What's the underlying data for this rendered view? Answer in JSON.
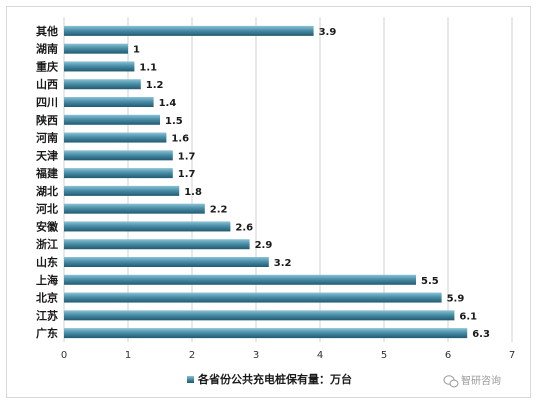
{
  "chart_data": {
    "type": "bar",
    "orientation": "horizontal",
    "categories": [
      "其他",
      "湖南",
      "重庆",
      "山西",
      "四川",
      "陕西",
      "河南",
      "天津",
      "福建",
      "湖北",
      "河北",
      "安徽",
      "浙江",
      "山东",
      "上海",
      "北京",
      "江苏",
      "广东"
    ],
    "values": [
      3.9,
      1,
      1.1,
      1.2,
      1.4,
      1.5,
      1.6,
      1.7,
      1.7,
      1.8,
      2.2,
      2.6,
      2.9,
      3.2,
      5.5,
      5.9,
      6.1,
      6.3
    ],
    "value_labels": [
      "3.9",
      "1",
      "1.1",
      "1.2",
      "1.4",
      "1.5",
      "1.6",
      "1.7",
      "1.7",
      "1.8",
      "2.2",
      "2.6",
      "2.9",
      "3.2",
      "5.5",
      "5.9",
      "6.1",
      "6.3"
    ],
    "xlim": [
      0,
      7
    ],
    "x_ticks": [
      "0",
      "1",
      "2",
      "3",
      "4",
      "5",
      "6",
      "7"
    ],
    "grid": true,
    "legend_position": "bottom",
    "series": [
      {
        "name": "各省份公共充电桩保有量：万台",
        "color": "#3e7d95"
      }
    ],
    "colors": {
      "bar_light": "#8cc3d6",
      "bar_mid": "#4a8fa8",
      "bar_dark": "#215a70",
      "gridline": "#d0d0d0"
    }
  },
  "watermark": {
    "icon": "wechat-icon",
    "text": "智研咨询"
  }
}
